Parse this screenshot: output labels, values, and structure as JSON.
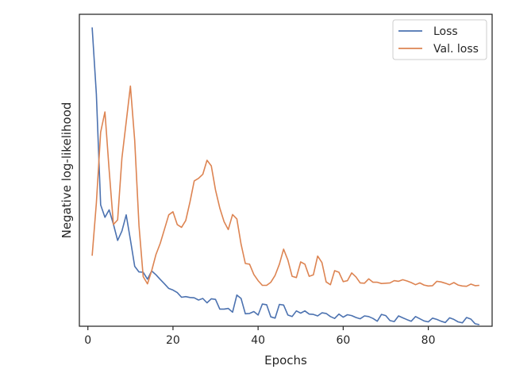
{
  "chart_data": {
    "type": "line",
    "xlabel": "Epochs",
    "ylabel": "Negative log-likelihood",
    "xlim": [
      -2,
      95
    ],
    "ylim": [
      0,
      100
    ],
    "xticks": [
      0,
      20,
      40,
      60,
      80
    ],
    "yticks_visible": false,
    "legend_position": "top-right",
    "series": [
      {
        "name": "Loss",
        "color": "#4c72b0",
        "x": [
          1,
          2,
          3,
          4,
          5,
          6,
          7,
          8,
          9,
          10,
          11,
          12,
          13,
          14,
          15,
          16,
          17,
          18,
          19,
          20,
          21,
          22,
          23,
          24,
          25,
          26,
          27,
          28,
          29,
          30,
          31,
          32,
          33,
          34,
          35,
          36,
          37,
          38,
          39,
          40,
          41,
          42,
          43,
          44,
          45,
          46,
          47,
          48,
          49,
          50,
          51,
          52,
          53,
          54,
          55,
          56,
          57,
          58,
          59,
          60,
          61,
          62,
          63,
          64,
          65,
          66,
          67,
          68,
          69,
          70,
          71,
          72,
          73,
          74,
          75,
          76,
          77,
          78,
          79,
          80,
          81,
          82,
          83,
          84,
          85,
          86,
          87,
          88,
          89,
          90,
          91,
          92
        ],
        "y": [
          95.8,
          74.4,
          38.9,
          34.9,
          37.3,
          32.7,
          27.5,
          30.5,
          35.7,
          27.7,
          19.2,
          17.4,
          17.3,
          15.1,
          17.7,
          16.5,
          15.0,
          13.6,
          12.1,
          11.6,
          10.8,
          9.3,
          9.5,
          9.2,
          9.1,
          8.4,
          8.9,
          7.5,
          8.8,
          8.6,
          5.5,
          5.5,
          5.7,
          4.5,
          10.0,
          8.9,
          4.0,
          4.1,
          4.7,
          3.6,
          7.1,
          6.9,
          3.0,
          2.6,
          7.0,
          6.8,
          3.6,
          3.1,
          4.9,
          4.2,
          4.9,
          3.9,
          3.8,
          3.3,
          4.3,
          4.1,
          3.1,
          2.5,
          3.9,
          2.9,
          3.7,
          3.4,
          2.8,
          2.4,
          3.3,
          3.1,
          2.5,
          1.6,
          3.8,
          3.4,
          1.8,
          1.5,
          3.3,
          2.7,
          2.1,
          1.6,
          3.1,
          2.4,
          1.7,
          1.4,
          2.6,
          2.2,
          1.6,
          1.2,
          2.7,
          2.2,
          1.4,
          1.1,
          2.8,
          2.3,
          0.8,
          0.5
        ]
      },
      {
        "name": "Val. loss",
        "color": "#dd8452",
        "x": [
          1,
          2,
          3,
          4,
          5,
          6,
          7,
          8,
          9,
          10,
          11,
          12,
          13,
          14,
          15,
          16,
          17,
          18,
          19,
          20,
          21,
          22,
          23,
          24,
          25,
          26,
          27,
          28,
          29,
          30,
          31,
          32,
          33,
          34,
          35,
          36,
          37,
          38,
          39,
          40,
          41,
          42,
          43,
          44,
          45,
          46,
          47,
          48,
          49,
          50,
          51,
          52,
          53,
          54,
          55,
          56,
          57,
          58,
          59,
          60,
          61,
          62,
          63,
          64,
          65,
          66,
          67,
          68,
          69,
          70,
          71,
          72,
          73,
          74,
          75,
          76,
          77,
          78,
          79,
          80,
          81,
          82,
          83,
          84,
          85,
          86,
          87,
          88,
          89,
          90,
          91,
          92
        ],
        "y": [
          22.6,
          39.5,
          62.2,
          68.7,
          50.1,
          32.6,
          34.1,
          53.9,
          65.5,
          77.0,
          59.6,
          32.3,
          15.9,
          13.6,
          17.8,
          23.0,
          26.6,
          31.1,
          35.7,
          36.7,
          32.6,
          31.7,
          33.9,
          39.9,
          46.6,
          47.4,
          48.7,
          53.2,
          51.4,
          43.7,
          37.9,
          33.5,
          31.0,
          35.8,
          34.4,
          26.3,
          20.1,
          19.9,
          16.6,
          14.6,
          13.1,
          13.1,
          14.1,
          16.3,
          19.9,
          24.7,
          21.2,
          16.0,
          15.6,
          20.6,
          19.9,
          16.0,
          16.5,
          22.5,
          20.4,
          14.2,
          13.3,
          17.8,
          17.3,
          14.3,
          14.6,
          17.1,
          15.8,
          13.9,
          13.8,
          15.2,
          14.1,
          14.1,
          13.7,
          13.8,
          13.9,
          14.6,
          14.4,
          14.9,
          14.5,
          14.0,
          13.3,
          13.9,
          13.2,
          12.9,
          13.0,
          14.4,
          14.2,
          13.8,
          13.3,
          14.0,
          13.2,
          12.9,
          12.8,
          13.5,
          13.0,
          13.1
        ]
      }
    ]
  }
}
